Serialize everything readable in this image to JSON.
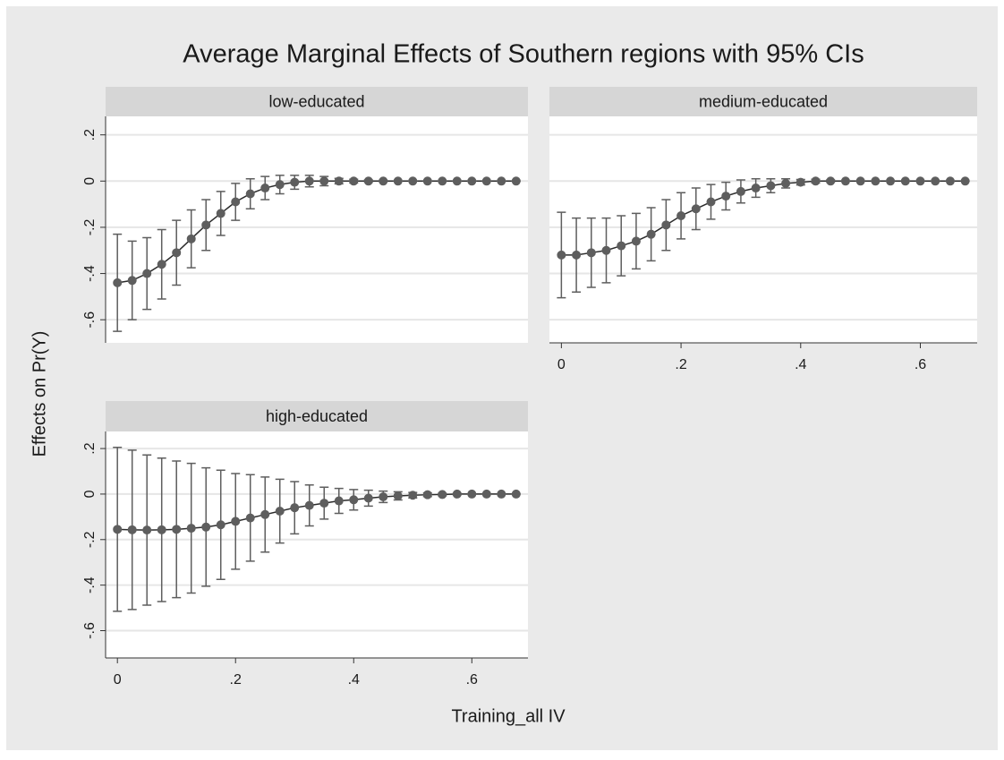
{
  "title": "Average Marginal Effects of Southern regions with 95% CIs",
  "ylabel": "Effects on Pr(Y)",
  "xlabel": "Training_all IV",
  "chart_data": [
    {
      "type": "errorbar",
      "subtitle": "low-educated",
      "x_tick_labels": false,
      "y_tick_labels": true,
      "x": [
        0,
        0.025,
        0.05,
        0.075,
        0.1,
        0.125,
        0.15,
        0.175,
        0.2,
        0.225,
        0.25,
        0.275,
        0.3,
        0.325,
        0.35,
        0.375,
        0.4,
        0.425,
        0.45,
        0.475,
        0.5,
        0.525,
        0.55,
        0.575,
        0.6,
        0.625,
        0.65,
        0.675
      ],
      "values": [
        -0.44,
        -0.43,
        -0.4,
        -0.36,
        -0.31,
        -0.25,
        -0.19,
        -0.14,
        -0.09,
        -0.055,
        -0.03,
        -0.015,
        -0.005,
        0,
        0,
        0,
        0,
        0,
        0,
        0,
        0,
        0,
        0,
        0,
        0,
        0,
        0,
        0
      ],
      "errors": [
        0.21,
        0.17,
        0.155,
        0.15,
        0.14,
        0.125,
        0.11,
        0.095,
        0.08,
        0.065,
        0.05,
        0.04,
        0.03,
        0.025,
        0.02,
        0.012,
        0.008,
        0.005,
        0.003,
        0,
        0,
        0,
        0,
        0,
        0,
        0,
        0,
        0
      ],
      "color": "#5e5e5e",
      "line_color": "#2b2b2b",
      "xlim": [
        -0.02,
        0.695
      ],
      "ylim": [
        -0.7,
        0.28
      ],
      "xticks": [
        0,
        {
          "value": 0.2,
          "label": ".2"
        },
        {
          "value": 0.4,
          "label": ".4"
        },
        {
          "value": 0.6,
          "label": ".6"
        }
      ],
      "yticks": [
        {
          "value": 0.2,
          "label": ".2"
        },
        0,
        {
          "value": -0.2,
          "label": "-.2"
        },
        {
          "value": -0.4,
          "label": "-.4"
        },
        {
          "value": -0.6,
          "label": "-.6"
        }
      ],
      "grid": true
    },
    {
      "type": "errorbar",
      "subtitle": "medium-educated",
      "x_tick_labels": true,
      "y_tick_labels": false,
      "x": [
        0,
        0.025,
        0.05,
        0.075,
        0.1,
        0.125,
        0.15,
        0.175,
        0.2,
        0.225,
        0.25,
        0.275,
        0.3,
        0.325,
        0.35,
        0.375,
        0.4,
        0.425,
        0.45,
        0.475,
        0.5,
        0.525,
        0.55,
        0.575,
        0.6,
        0.625,
        0.65,
        0.675
      ],
      "values": [
        -0.32,
        -0.32,
        -0.31,
        -0.3,
        -0.28,
        -0.26,
        -0.23,
        -0.19,
        -0.15,
        -0.12,
        -0.09,
        -0.065,
        -0.045,
        -0.03,
        -0.02,
        -0.01,
        -0.005,
        0,
        0,
        0,
        0,
        0,
        0,
        0,
        0,
        0,
        0,
        0
      ],
      "errors": [
        0.185,
        0.16,
        0.15,
        0.14,
        0.13,
        0.12,
        0.115,
        0.11,
        0.1,
        0.09,
        0.075,
        0.06,
        0.05,
        0.04,
        0.03,
        0.02,
        0.012,
        0.008,
        0.005,
        0,
        0,
        0,
        0,
        0,
        0,
        0,
        0,
        0
      ],
      "color": "#5e5e5e",
      "line_color": "#2b2b2b",
      "xlim": [
        -0.02,
        0.695
      ],
      "ylim": [
        -0.7,
        0.28
      ],
      "xticks": [
        0,
        {
          "value": 0.2,
          "label": ".2"
        },
        {
          "value": 0.4,
          "label": ".4"
        },
        {
          "value": 0.6,
          "label": ".6"
        }
      ],
      "yticks": [
        {
          "value": 0.2,
          "label": ".2"
        },
        0,
        {
          "value": -0.2,
          "label": "-.2"
        },
        {
          "value": -0.4,
          "label": "-.4"
        },
        {
          "value": -0.6,
          "label": "-.6"
        }
      ],
      "grid": true
    },
    {
      "type": "errorbar",
      "subtitle": "high-educated",
      "x_tick_labels": true,
      "y_tick_labels": true,
      "x": [
        0,
        0.025,
        0.05,
        0.075,
        0.1,
        0.125,
        0.15,
        0.175,
        0.2,
        0.225,
        0.25,
        0.275,
        0.3,
        0.325,
        0.35,
        0.375,
        0.4,
        0.425,
        0.45,
        0.475,
        0.5,
        0.525,
        0.55,
        0.575,
        0.6,
        0.625,
        0.65,
        0.675
      ],
      "values": [
        -0.155,
        -0.157,
        -0.158,
        -0.157,
        -0.155,
        -0.15,
        -0.145,
        -0.135,
        -0.12,
        -0.105,
        -0.09,
        -0.075,
        -0.06,
        -0.05,
        -0.04,
        -0.03,
        -0.025,
        -0.018,
        -0.012,
        -0.008,
        -0.005,
        -0.003,
        -0.002,
        0,
        0,
        0,
        0,
        0
      ],
      "errors": [
        0.36,
        0.35,
        0.33,
        0.315,
        0.3,
        0.285,
        0.26,
        0.24,
        0.21,
        0.19,
        0.165,
        0.14,
        0.115,
        0.09,
        0.07,
        0.055,
        0.045,
        0.035,
        0.025,
        0.018,
        0.012,
        0.008,
        0.005,
        0.003,
        0,
        0,
        0,
        0
      ],
      "color": "#5e5e5e",
      "line_color": "#2b2b2b",
      "xlim": [
        -0.02,
        0.695
      ],
      "ylim": [
        -0.72,
        0.275
      ],
      "xticks": [
        0,
        {
          "value": 0.2,
          "label": ".2"
        },
        {
          "value": 0.4,
          "label": ".4"
        },
        {
          "value": 0.6,
          "label": ".6"
        }
      ],
      "yticks": [
        {
          "value": 0.2,
          "label": ".2"
        },
        0,
        {
          "value": -0.2,
          "label": "-.2"
        },
        {
          "value": -0.4,
          "label": "-.4"
        },
        {
          "value": -0.6,
          "label": "-.6"
        }
      ],
      "grid": true
    }
  ]
}
